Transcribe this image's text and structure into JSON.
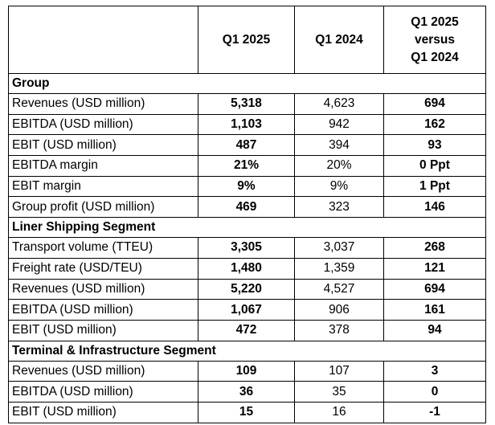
{
  "header": {
    "label": "",
    "col1": "Q1 2025",
    "col2": "Q1 2024",
    "col3_line1": "Q1 2025",
    "col3_line2": "versus",
    "col3_line3": "Q1 2024"
  },
  "sections": [
    {
      "title": "Group",
      "rows": [
        {
          "label": "Revenues (USD million)",
          "q1_2025": "5,318",
          "q1_2024": "4,623",
          "change": "694"
        },
        {
          "label": "EBITDA (USD million)",
          "q1_2025": "1,103",
          "q1_2024": "942",
          "change": "162"
        },
        {
          "label": "EBIT (USD million)",
          "q1_2025": "487",
          "q1_2024": "394",
          "change": "93"
        },
        {
          "label": "EBITDA margin",
          "q1_2025": "21%",
          "q1_2024": "20%",
          "change": "0 Ppt"
        },
        {
          "label": "EBIT margin",
          "q1_2025": "9%",
          "q1_2024": "9%",
          "change": "1 Ppt"
        },
        {
          "label": "Group profit (USD million)",
          "q1_2025": "469",
          "q1_2024": "323",
          "change": "146"
        }
      ]
    },
    {
      "title": "Liner Shipping Segment",
      "rows": [
        {
          "label": "Transport volume (TTEU)",
          "q1_2025": "3,305",
          "q1_2024": "3,037",
          "change": "268"
        },
        {
          "label": "Freight rate (USD/TEU)",
          "q1_2025": "1,480",
          "q1_2024": "1,359",
          "change": "121"
        },
        {
          "label": "Revenues (USD million)",
          "q1_2025": "5,220",
          "q1_2024": "4,527",
          "change": "694"
        },
        {
          "label": "EBITDA (USD million)",
          "q1_2025": "1,067",
          "q1_2024": "906",
          "change": "161"
        },
        {
          "label": "EBIT (USD million)",
          "q1_2025": "472",
          "q1_2024": "378",
          "change": "94"
        }
      ]
    },
    {
      "title": "Terminal & Infrastructure Segment",
      "rows": [
        {
          "label": "Revenues (USD million)",
          "q1_2025": "109",
          "q1_2024": "107",
          "change": "3"
        },
        {
          "label": "EBITDA (USD million)",
          "q1_2025": "36",
          "q1_2024": "35",
          "change": "0"
        },
        {
          "label": "EBIT (USD million)",
          "q1_2025": "15",
          "q1_2024": "16",
          "change": "-1"
        }
      ]
    }
  ]
}
